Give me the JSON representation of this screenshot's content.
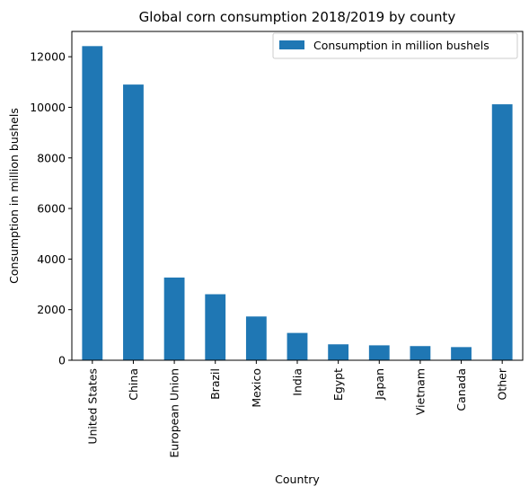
{
  "chart_data": {
    "type": "bar",
    "title": "Global corn consumption 2018/2019 by county",
    "xlabel": "Country",
    "ylabel": "Consumption in million bushels",
    "categories": [
      "United States",
      "China",
      "European Union",
      "Brazil",
      "Mexico",
      "India",
      "Egypt",
      "Japan",
      "Vietnam",
      "Canada",
      "Other"
    ],
    "series": [
      {
        "name": "Consumption in million bushels",
        "color": "#1f77b4",
        "values": [
          12420,
          10900,
          3270,
          2610,
          1730,
          1080,
          630,
          590,
          560,
          520,
          10120
        ]
      }
    ],
    "ylim": [
      0,
      13000
    ],
    "yticks": [
      0,
      2000,
      4000,
      6000,
      8000,
      10000,
      12000
    ],
    "legend_position": "top-right",
    "grid": false
  }
}
